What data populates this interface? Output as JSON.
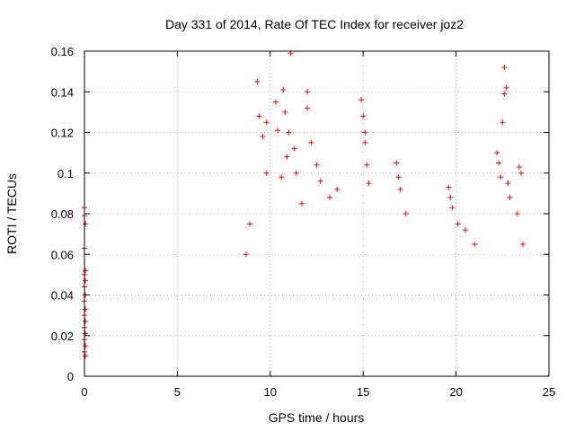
{
  "chart_data": {
    "type": "scatter",
    "title": "Day 331 of 2014, Rate Of TEC Index for receiver joz2",
    "xlabel": "GPS time / hours",
    "ylabel": "ROTI / TECUs",
    "xlim": [
      0,
      25
    ],
    "ylim": [
      0,
      0.16
    ],
    "xticks": [
      0,
      5,
      10,
      15,
      20,
      25
    ],
    "xtick_labels": [
      "0",
      "5",
      "10",
      "15",
      "20",
      "25"
    ],
    "yticks": [
      0,
      0.02,
      0.04,
      0.06,
      0.08,
      0.1,
      0.12,
      0.14,
      0.16
    ],
    "ytick_labels": [
      "0",
      "0.02",
      "0.04",
      "0.06",
      "0.08",
      "0.1",
      "0.12",
      "0.14",
      "0.16"
    ],
    "grid": true,
    "marker": "+",
    "color": "#ff0000",
    "series": [
      {
        "name": "joz2",
        "points": [
          [
            0.0,
            0.083
          ],
          [
            0.0,
            0.079
          ],
          [
            0.05,
            0.075
          ],
          [
            0.0,
            0.063
          ],
          [
            0.05,
            0.052
          ],
          [
            0.0,
            0.05
          ],
          [
            0.05,
            0.047
          ],
          [
            0.0,
            0.044
          ],
          [
            0.05,
            0.04
          ],
          [
            0.0,
            0.037
          ],
          [
            0.05,
            0.033
          ],
          [
            0.0,
            0.03
          ],
          [
            0.05,
            0.027
          ],
          [
            0.0,
            0.024
          ],
          [
            0.05,
            0.021
          ],
          [
            0.0,
            0.018
          ],
          [
            0.05,
            0.015
          ],
          [
            0.0,
            0.012
          ],
          [
            0.05,
            0.01
          ],
          [
            8.7,
            0.06
          ],
          [
            8.9,
            0.075
          ],
          [
            9.3,
            0.145
          ],
          [
            9.4,
            0.128
          ],
          [
            9.6,
            0.118
          ],
          [
            9.8,
            0.1
          ],
          [
            9.8,
            0.125
          ],
          [
            10.3,
            0.135
          ],
          [
            10.4,
            0.121
          ],
          [
            10.6,
            0.098
          ],
          [
            10.7,
            0.141
          ],
          [
            10.8,
            0.13
          ],
          [
            10.9,
            0.108
          ],
          [
            11.0,
            0.12
          ],
          [
            11.1,
            0.159
          ],
          [
            11.3,
            0.112
          ],
          [
            11.4,
            0.1
          ],
          [
            11.7,
            0.085
          ],
          [
            12.0,
            0.14
          ],
          [
            12.0,
            0.132
          ],
          [
            12.2,
            0.115
          ],
          [
            12.5,
            0.104
          ],
          [
            12.7,
            0.096
          ],
          [
            13.2,
            0.088
          ],
          [
            13.6,
            0.092
          ],
          [
            14.9,
            0.136
          ],
          [
            15.0,
            0.128
          ],
          [
            15.1,
            0.12
          ],
          [
            15.1,
            0.115
          ],
          [
            15.2,
            0.104
          ],
          [
            15.3,
            0.095
          ],
          [
            16.8,
            0.105
          ],
          [
            16.9,
            0.098
          ],
          [
            17.0,
            0.092
          ],
          [
            17.3,
            0.08
          ],
          [
            19.6,
            0.093
          ],
          [
            19.7,
            0.088
          ],
          [
            19.8,
            0.083
          ],
          [
            20.1,
            0.075
          ],
          [
            20.5,
            0.072
          ],
          [
            21.0,
            0.065
          ],
          [
            22.2,
            0.11
          ],
          [
            22.3,
            0.105
          ],
          [
            22.4,
            0.098
          ],
          [
            22.5,
            0.125
          ],
          [
            22.6,
            0.152
          ],
          [
            22.7,
            0.142
          ],
          [
            22.6,
            0.139
          ],
          [
            22.8,
            0.095
          ],
          [
            22.9,
            0.088
          ],
          [
            23.4,
            0.103
          ],
          [
            23.5,
            0.1
          ],
          [
            23.3,
            0.08
          ],
          [
            23.6,
            0.065
          ]
        ]
      }
    ]
  }
}
